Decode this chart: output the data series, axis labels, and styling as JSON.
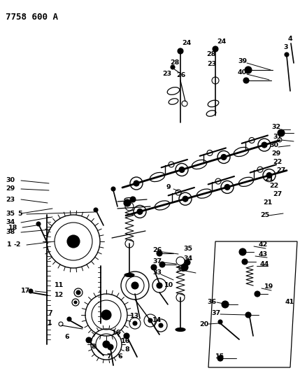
{
  "title": "7758 600 A",
  "bg_color": "#ffffff",
  "fg_color": "#000000",
  "figsize": [
    4.29,
    5.33
  ],
  "dpi": 100
}
